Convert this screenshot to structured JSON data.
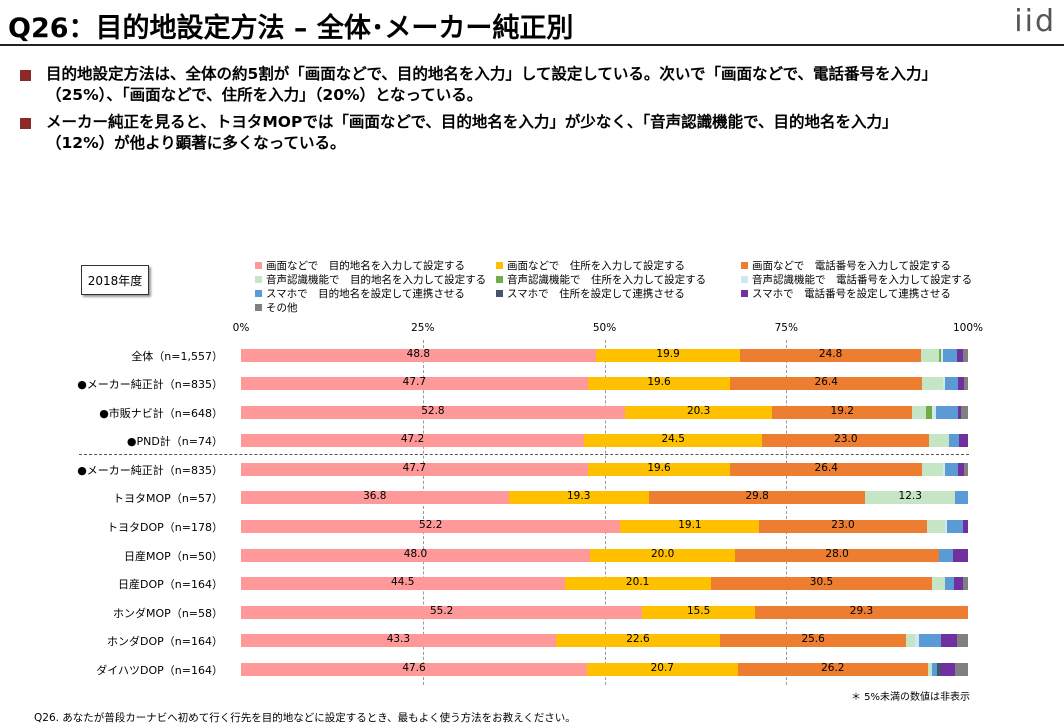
{
  "title": "Q26：目的地設定方法 – 全体･メーカー純正別",
  "logo": "iid",
  "bullets": [
    [
      "目的地設定方法は、全体の約5割が「画面などで、目的地名を入力」して設定している。次いで「画面などで、電話番号を入力」",
      "（25%）、「画面などで、住所を入力」（20%）となっている。"
    ],
    [
      "メーカー純正を見ると、トヨタMOPでは「画面などで、目的地名を入力」が少なく、「音声認識機能で、目的地名を入力」",
      "（12%）が他より顕著に多くなっている。"
    ]
  ],
  "year_label": "2018年度",
  "footnote": "＊ 5%未満の数値は非表示",
  "question": "Q26. あなたが普段カーナビへ初めて行く行先を目的地などに設定するとき、最もよく使う方法をお教えください。",
  "colors": [
    "#ff9999",
    "#ffc000",
    "#ed7d31",
    "#c6e5c4",
    "#70ad47",
    "#d0e8f0",
    "#5b9bd5",
    "#44546a",
    "#7030a0",
    "#808080"
  ],
  "chart_data": {
    "type": "bar",
    "orientation": "horizontal-stacked",
    "x_ticks": [
      "0%",
      "25%",
      "50%",
      "75%",
      "100%"
    ],
    "xlim": [
      0,
      100
    ],
    "legend": [
      "画面などで　目的地名を入力して設定する",
      "画面などで　住所を入力して設定する",
      "画面などで　電話番号を入力して設定する",
      "音声認識機能で　目的地名を入力して設定する",
      "音声認識機能で　住所を入力して設定する",
      "音声認識機能で　電話番号を入力して設定する",
      "スマホで　目的地名を設定して連携させる",
      "スマホで　住所を設定して連携させる",
      "スマホで　電話番号を設定して連携させる",
      "その他"
    ],
    "categories": [
      "全体（n=1,557）",
      "●メーカー純正計（n=835）",
      "●市販ナビ計（n=648）",
      "●PND計（n=74）",
      "●メーカー純正計（n=835）",
      "トヨタMOP（n=57）",
      "トヨタDOP（n=178）",
      "日産MOP（n=50）",
      "日産DOP（n=164）",
      "ホンダMOP（n=58）",
      "ホンダDOP（n=164）",
      "ダイハツDOP（n=164）"
    ],
    "rows": [
      [
        48.8,
        19.9,
        24.8,
        2.5,
        0.3,
        0.2,
        2.0,
        0.0,
        0.8,
        0.7
      ],
      [
        47.7,
        19.6,
        26.4,
        2.8,
        0.0,
        0.3,
        1.8,
        0.0,
        0.8,
        0.6
      ],
      [
        52.8,
        20.3,
        19.2,
        1.9,
        0.8,
        0.6,
        3.0,
        0.0,
        0.4,
        1.0
      ],
      [
        47.2,
        24.5,
        23.0,
        2.7,
        0.0,
        0.0,
        1.4,
        0.0,
        1.2,
        0.0
      ],
      [
        47.7,
        19.6,
        26.4,
        2.8,
        0.0,
        0.3,
        1.8,
        0.0,
        0.8,
        0.6
      ],
      [
        36.8,
        19.3,
        29.8,
        12.3,
        0.0,
        0.0,
        1.8,
        0.0,
        0.0,
        0.0
      ],
      [
        52.2,
        19.1,
        23.0,
        2.5,
        0.0,
        0.3,
        2.2,
        0.0,
        0.7,
        0.0
      ],
      [
        48.0,
        20.0,
        28.0,
        0.0,
        0.0,
        0.0,
        2.0,
        0.0,
        2.0,
        0.0
      ],
      [
        44.5,
        20.1,
        30.5,
        1.8,
        0.0,
        0.0,
        1.2,
        0.0,
        1.2,
        0.7
      ],
      [
        55.2,
        15.5,
        29.3,
        0.0,
        0.0,
        0.0,
        0.0,
        0.0,
        0.0,
        0.0
      ],
      [
        43.3,
        22.6,
        25.6,
        1.2,
        0.0,
        0.6,
        3.0,
        0.0,
        2.2,
        1.5
      ],
      [
        47.6,
        20.7,
        26.2,
        0.6,
        0.0,
        0.0,
        0.6,
        0.6,
        1.9,
        1.8
      ]
    ],
    "label_threshold": 5
  }
}
